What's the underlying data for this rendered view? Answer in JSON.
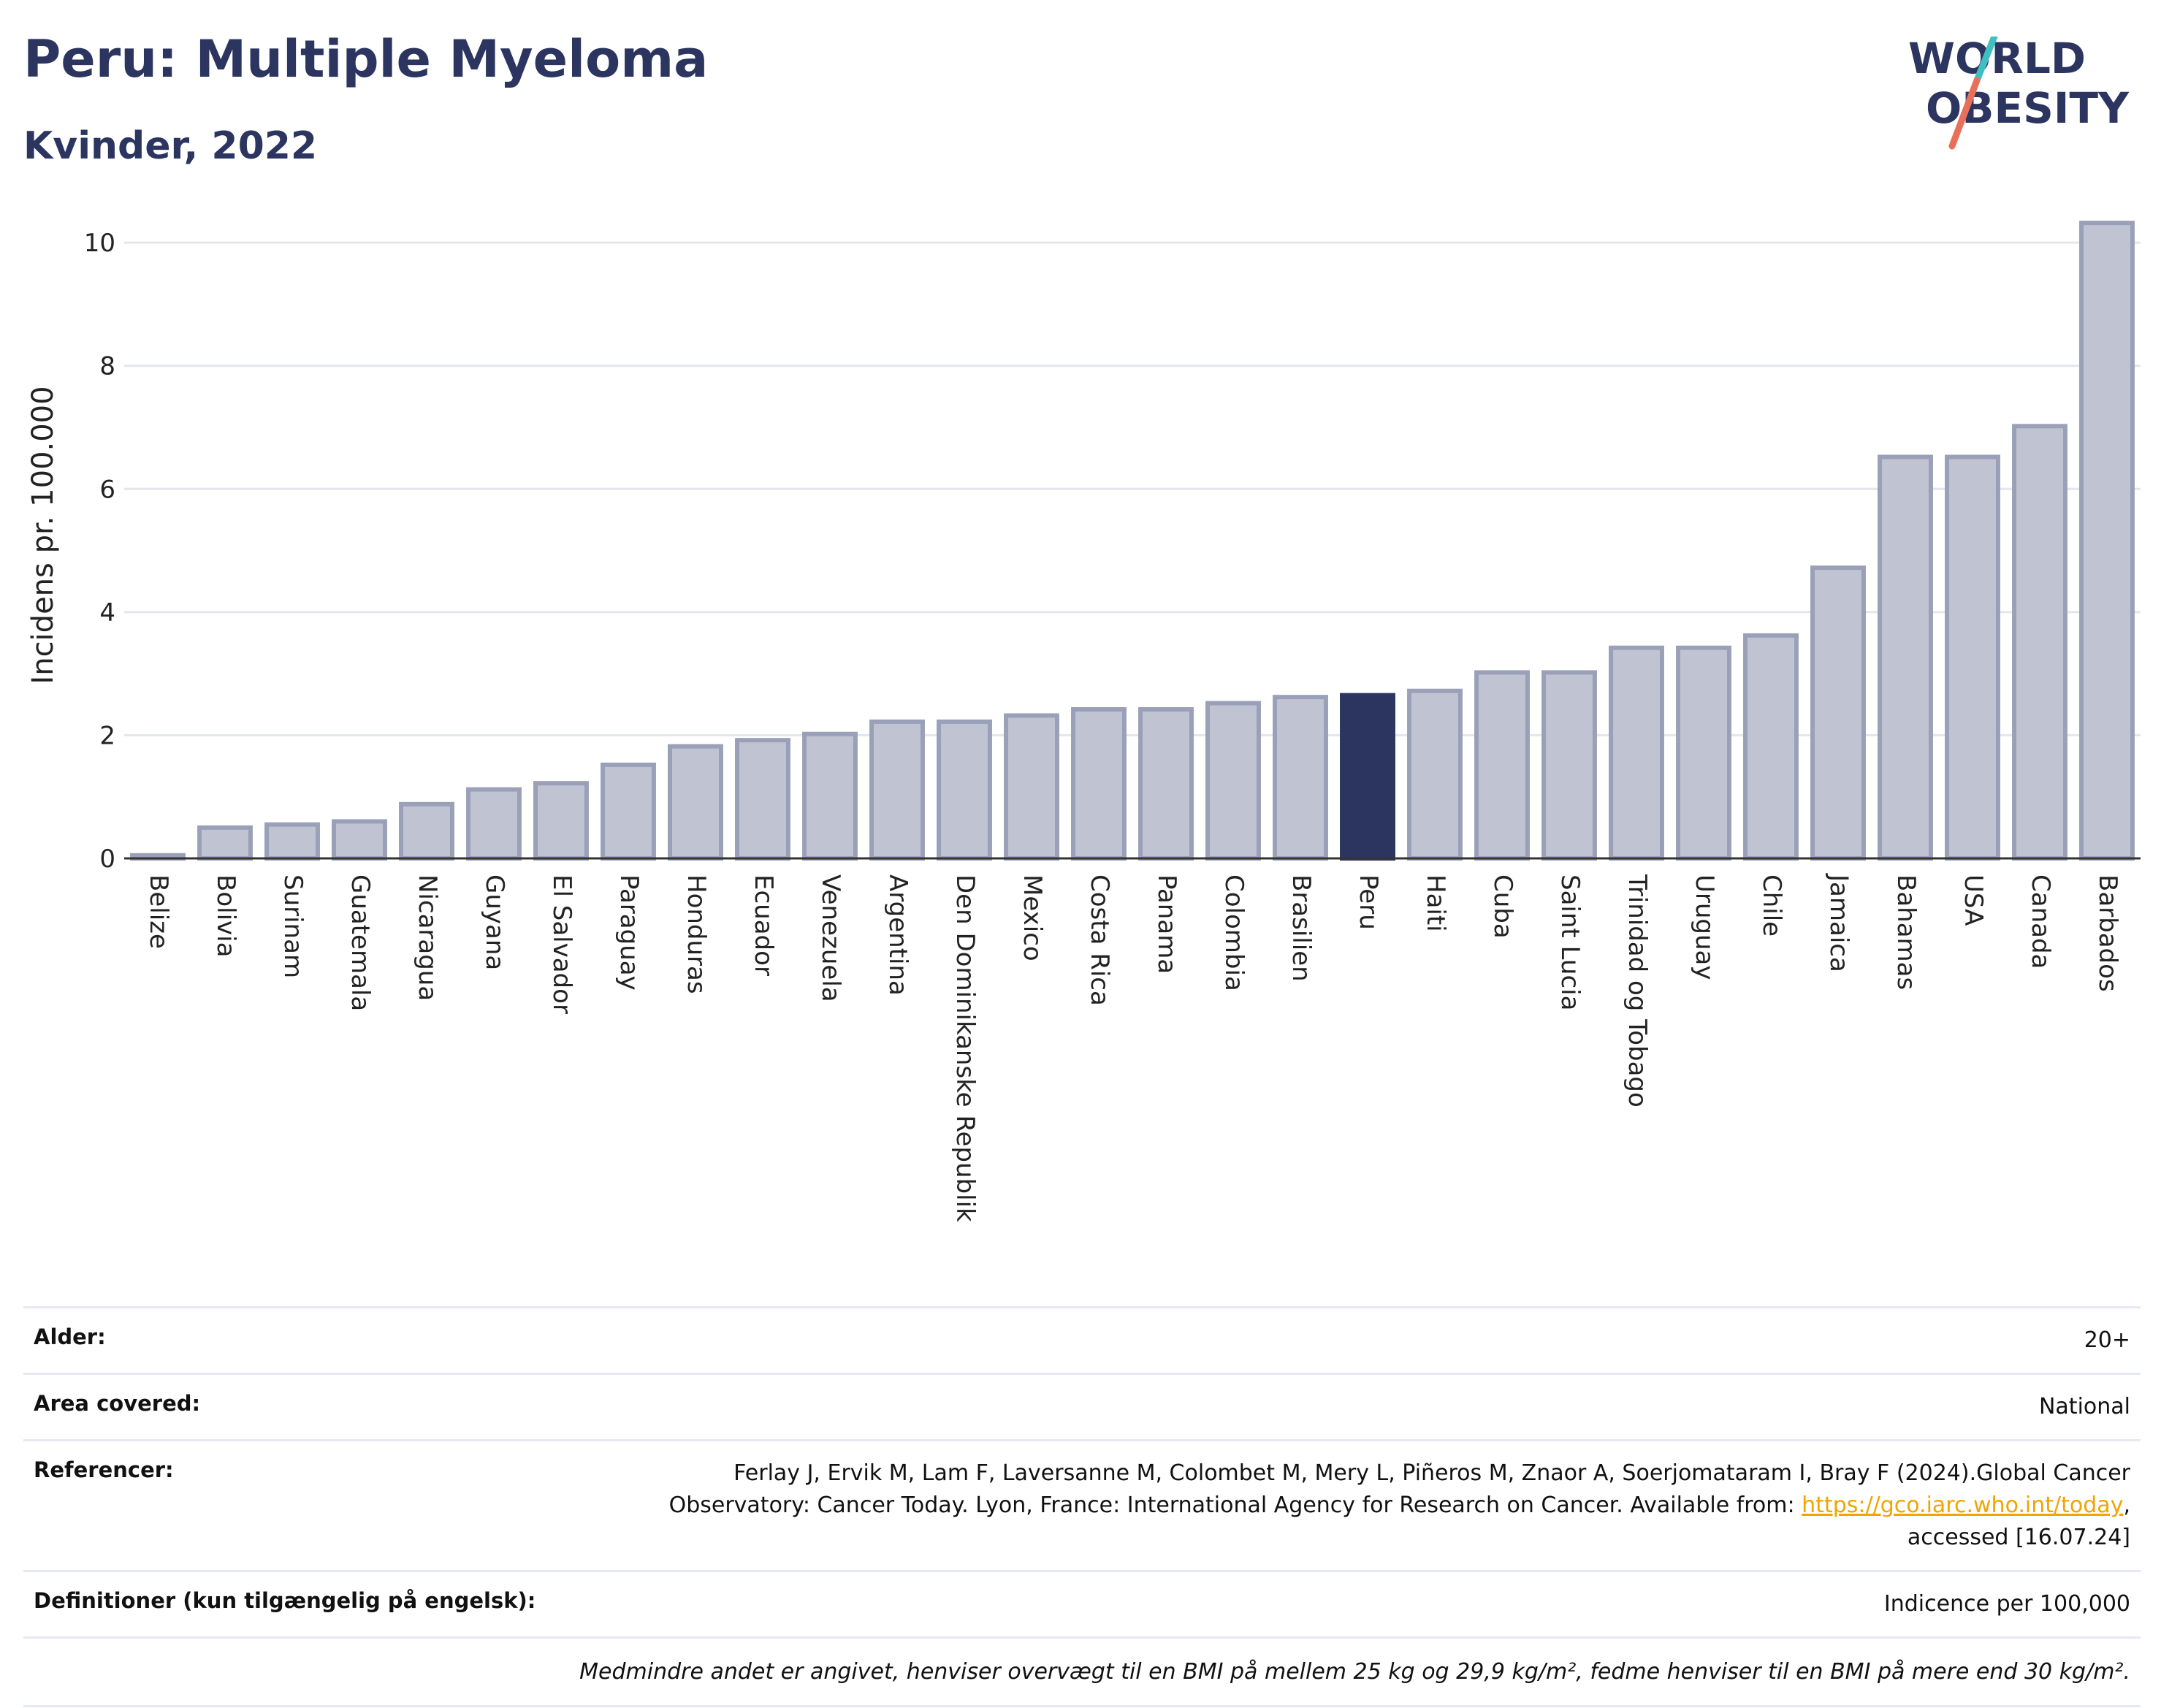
{
  "title": "Peru: Multiple Myeloma",
  "subtitle": "Kvinder, 2022",
  "logo": {
    "line1": "WORLD",
    "line2": "OBESITY"
  },
  "colors": {
    "bar": "#c0c4d2",
    "bar_stroke": "#9aa0b8",
    "highlight": "#2b3560",
    "grid": "#e4e6ee",
    "axis": "#333333"
  },
  "chart_data": {
    "type": "bar",
    "ylabel": "Incidens pr. 100.000",
    "ylim": [
      0,
      10.5
    ],
    "yticks": [
      0,
      2,
      4,
      6,
      8,
      10
    ],
    "grid": true,
    "highlight": "Peru",
    "categories": [
      "Belize",
      "Bolivia",
      "Surinam",
      "Guatemala",
      "Nicaragua",
      "Guyana",
      "El Salvador",
      "Paraguay",
      "Honduras",
      "Ecuador",
      "Venezuela",
      "Argentina",
      "Den Dominikanske Republik",
      "Mexico",
      "Costa Rica",
      "Panama",
      "Colombia",
      "Brasilien",
      "Peru",
      "Haiti",
      "Cuba",
      "Saint Lucia",
      "Trinidad og Tobago",
      "Uruguay",
      "Chile",
      "Jamaica",
      "Bahamas",
      "USA",
      "Canada",
      "Barbados"
    ],
    "values": [
      0.05,
      0.5,
      0.55,
      0.6,
      0.88,
      1.12,
      1.22,
      1.52,
      1.82,
      1.92,
      2.02,
      2.22,
      2.22,
      2.32,
      2.42,
      2.42,
      2.52,
      2.62,
      2.65,
      2.72,
      3.02,
      3.02,
      3.42,
      3.42,
      3.62,
      4.72,
      6.52,
      6.52,
      7.02,
      10.32
    ]
  },
  "info": {
    "age_label": "Alder:",
    "age_value": "20+",
    "area_label": "Area covered:",
    "area_value": "National",
    "ref_label": "Referencer:",
    "ref_text_1": "Ferlay J, Ervik M, Lam F, Laversanne M, Colombet M, Mery L, Piñeros M, Znaor A, Soerjomataram I, Bray F (2024).Global Cancer Observatory: Cancer Today. Lyon, France: International Agency for Research on Cancer. Available from: ",
    "ref_link": "https://gco.iarc.who.int/today",
    "ref_text_2": ", accessed [16.07.24]",
    "def_label": "Definitioner (kun tilgængelig på engelsk):",
    "def_value": "Indicence per 100,000",
    "note": "Medmindre andet er angivet, henviser overvægt til en BMI på mellem 25 kg og 29,9 kg/m², fedme henviser til en BMI på mere end 30 kg/m²."
  }
}
